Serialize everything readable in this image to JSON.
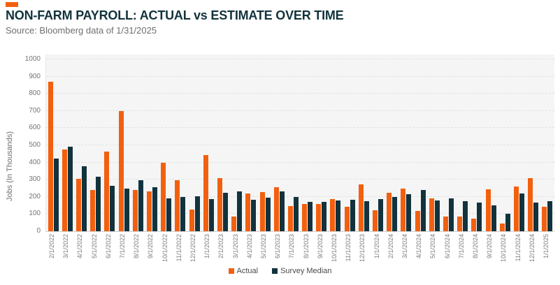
{
  "header": {
    "title": "NON-FARM PAYROLL: ACTUAL vs ESTIMATE OVER TIME",
    "subtitle": "Source: Bloomberg data of 1/31/2025",
    "brand_color": "#f2600f"
  },
  "chart_data": {
    "type": "bar",
    "title": "NON-FARM PAYROLL: ACTUAL vs ESTIMATE OVER TIME",
    "subtitle": "Source: Bloomberg data of 1/31/2025",
    "xlabel": "",
    "ylabel": "Jobs (In Thousands)",
    "ylim": [
      0,
      1000
    ],
    "yticks": [
      0,
      100,
      200,
      300,
      400,
      500,
      600,
      700,
      800,
      900,
      1000
    ],
    "grid": "horizontal-dashed",
    "legend_position": "bottom-center",
    "panel_background": "#f5f5f6",
    "categories": [
      "2/1/2022",
      "3/1/2022",
      "4/1/2022",
      "5/1/2022",
      "6/1/2022",
      "7/1/2022",
      "8/1/2022",
      "9/1/2022",
      "10/1/2022",
      "11/1/2022",
      "12/1/2022",
      "1/1/2023",
      "2/1/2023",
      "3/1/2023",
      "4/1/2023",
      "5/1/2023",
      "6/1/2023",
      "7/1/2023",
      "8/1/2023",
      "9/1/2023",
      "10/1/2023",
      "11/1/2023",
      "12/1/2023",
      "1/1/2024",
      "2/1/2024",
      "3/1/2024",
      "4/1/2024",
      "5/1/2024",
      "6/1/2024",
      "7/1/2024",
      "8/1/2024",
      "9/1/2024",
      "10/1/2024",
      "11/1/2024",
      "12/1/2024",
      "1/1/2025"
    ],
    "series": [
      {
        "name": "Actual",
        "color": "#f2600f",
        "values": [
          870,
          475,
          305,
          240,
          462,
          700,
          238,
          230,
          400,
          297,
          127,
          445,
          308,
          85,
          218,
          228,
          257,
          148,
          158,
          160,
          188,
          143,
          272,
          120,
          222,
          246,
          118,
          192,
          87,
          85,
          72,
          242,
          44,
          261,
          307,
          143
        ]
      },
      {
        "name": "Survey Median",
        "color": "#12333d",
        "values": [
          423,
          490,
          380,
          318,
          265,
          250,
          298,
          255,
          193,
          200,
          205,
          189,
          225,
          230,
          185,
          195,
          230,
          200,
          170,
          170,
          180,
          185,
          175,
          187,
          200,
          214,
          240,
          180,
          190,
          175,
          165,
          150,
          100,
          220,
          165,
          175
        ]
      }
    ]
  }
}
